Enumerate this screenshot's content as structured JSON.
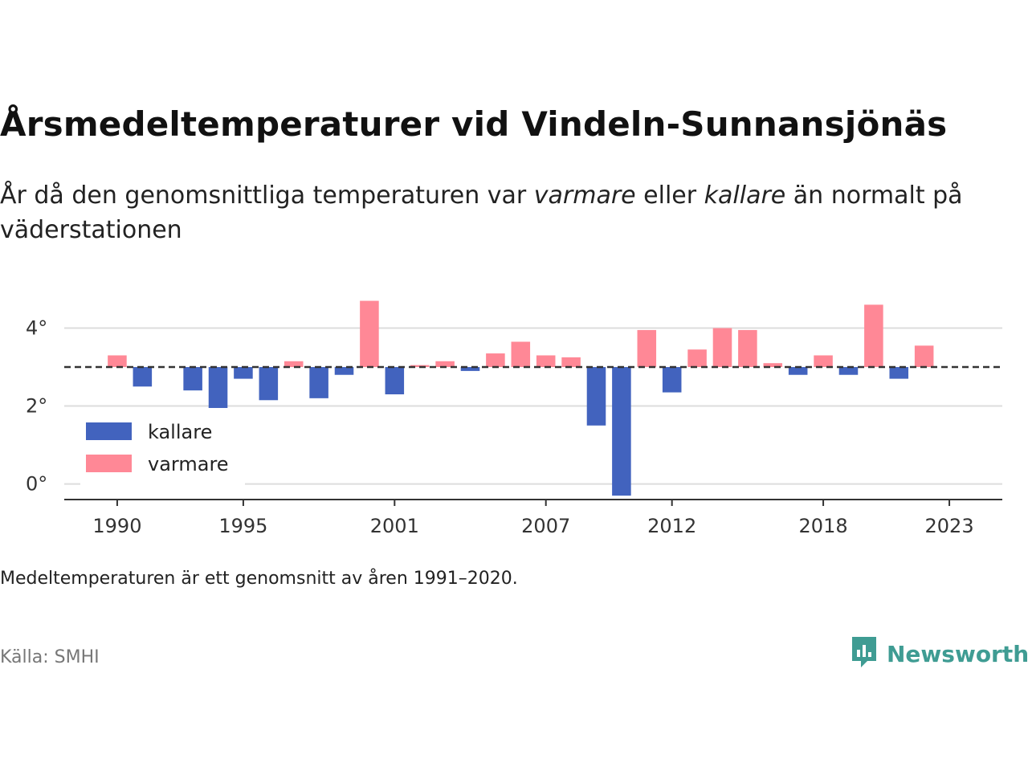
{
  "header": {
    "title": "Årsmedeltemperaturer vid Vindeln-Sunnansjönäs",
    "subtitle_before": "År då den genomsnittliga temperaturen var ",
    "subtitle_warm": "varmare",
    "subtitle_mid": " eller ",
    "subtitle_cold": "kallare",
    "subtitle_after": " än normalt på väderstationen"
  },
  "footer": {
    "note": "Medeltemperaturen är ett genomsnitt av åren 1991–2020.",
    "source": "Källa: SMHI",
    "brand": "Newsworthy"
  },
  "colors": {
    "cold": "#4263be",
    "warm": "#ff8896",
    "baseline": "#333333",
    "grid": "#dddddd",
    "brand": "#3f9c93"
  },
  "chart_data": {
    "type": "bar",
    "baseline": 3.0,
    "ylim": [
      -0.4,
      5.0
    ],
    "yticks": [
      0,
      2,
      4
    ],
    "ytick_labels": [
      "0°",
      "2°",
      "4°"
    ],
    "xlim": [
      1987.9,
      2025.1
    ],
    "xticks": [
      1990,
      1995,
      2001,
      2007,
      2012,
      2018,
      2023
    ],
    "xtick_labels": [
      "1990",
      "1995",
      "2001",
      "2007",
      "2012",
      "2018",
      "2023"
    ],
    "legend": {
      "position": "bottom-left",
      "items": [
        {
          "key": "cold",
          "label": "kallare"
        },
        {
          "key": "warm",
          "label": "varmare"
        }
      ]
    },
    "years": [
      1990,
      1991,
      1993,
      1994,
      1995,
      1996,
      1997,
      1998,
      1999,
      2000,
      2001,
      2002,
      2003,
      2004,
      2005,
      2006,
      2007,
      2008,
      2009,
      2010,
      2011,
      2012,
      2013,
      2014,
      2015,
      2016,
      2017,
      2018,
      2019,
      2020,
      2021,
      2022
    ],
    "values": [
      3.3,
      2.5,
      2.4,
      1.95,
      2.7,
      2.15,
      3.15,
      2.2,
      2.8,
      4.7,
      2.3,
      3.05,
      3.15,
      2.9,
      3.35,
      3.65,
      3.3,
      3.25,
      1.5,
      -0.3,
      3.95,
      2.35,
      3.45,
      4.0,
      3.95,
      3.1,
      2.8,
      3.3,
      2.8,
      4.6,
      2.7,
      3.55
    ]
  }
}
